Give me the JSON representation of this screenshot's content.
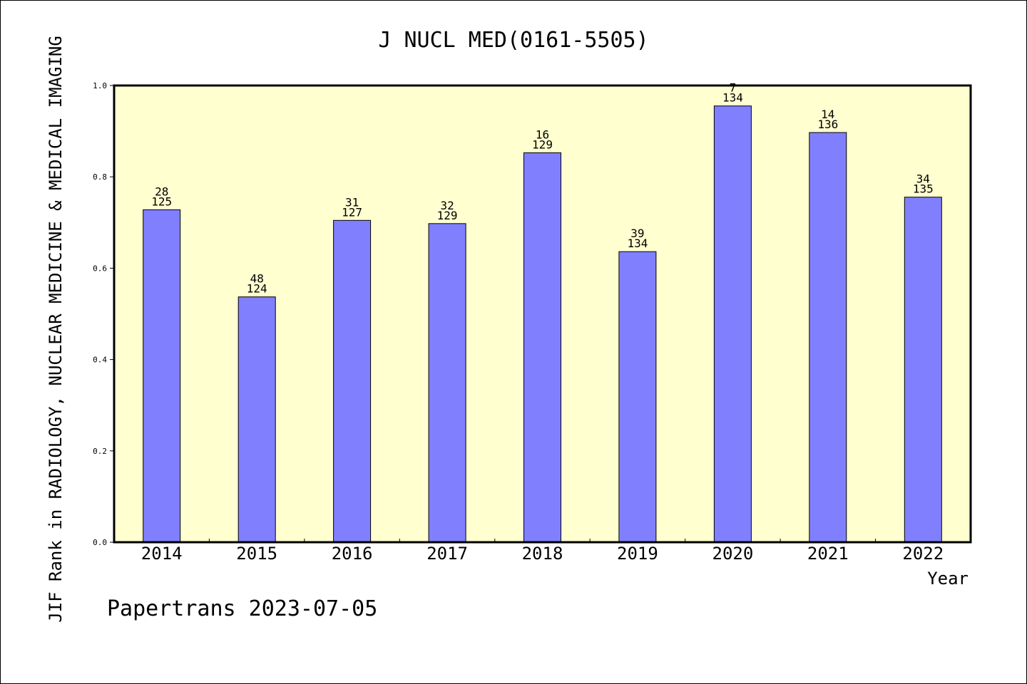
{
  "chart_data": {
    "type": "bar",
    "title": "J NUCL MED(0161-5505)",
    "ylabel": "JIF Rank in RADIOLOGY, NUCLEAR MEDICINE & MEDICAL IMAGING",
    "xlabel": "Year",
    "categories": [
      "2014",
      "2015",
      "2016",
      "2017",
      "2018",
      "2019",
      "2020",
      "2021",
      "2022"
    ],
    "values": [
      0.728,
      0.5371,
      0.7047,
      0.6977,
      0.8527,
      0.6362,
      0.9552,
      0.8971,
      0.7556
    ],
    "rank_labels": [
      {
        "rank": "28",
        "total": "125"
      },
      {
        "rank": "48",
        "total": "124"
      },
      {
        "rank": "31",
        "total": "127"
      },
      {
        "rank": "32",
        "total": "129"
      },
      {
        "rank": "16",
        "total": "129"
      },
      {
        "rank": "39",
        "total": "134"
      },
      {
        "rank": "7",
        "total": "134"
      },
      {
        "rank": "14",
        "total": "136"
      },
      {
        "rank": "34",
        "total": "135"
      }
    ],
    "ylim": [
      0,
      1.0
    ],
    "yticks": [
      "0.0",
      "0.2",
      "0.4",
      "0.6",
      "0.8",
      "1.0"
    ],
    "grid": false,
    "colors": {
      "bar": "#8080ff",
      "plot_bg": "#ffffd0",
      "axis": "#000000"
    }
  },
  "footer": {
    "watermark": "Papertrans 2023-07-05"
  }
}
